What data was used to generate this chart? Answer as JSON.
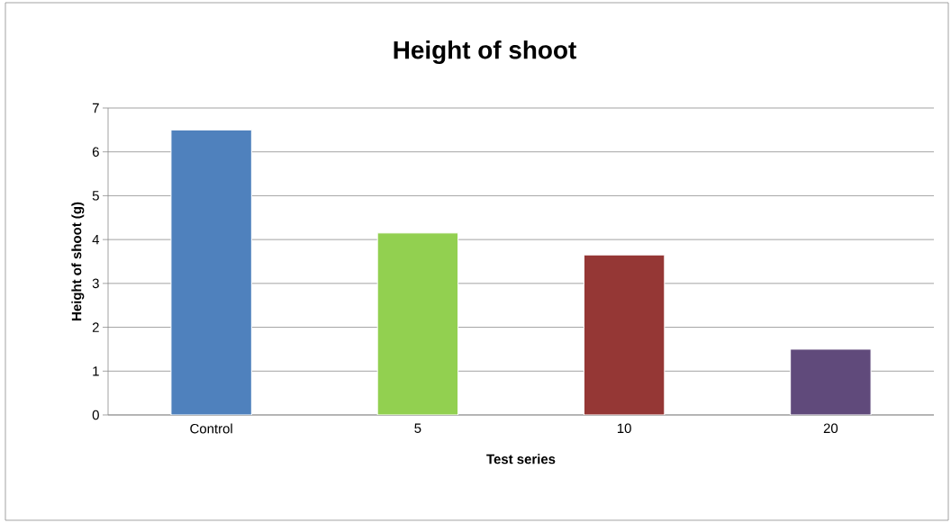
{
  "chart_data": {
    "type": "bar",
    "title": "Height of shoot",
    "xlabel": "Test series",
    "ylabel": "Height of shoot (g)",
    "categories": [
      "Control",
      "5",
      "10",
      "20"
    ],
    "values": [
      6.5,
      4.15,
      3.65,
      1.5
    ],
    "colors": [
      "#4f81bd",
      "#92d050",
      "#953735",
      "#604a7b"
    ],
    "ylim": [
      0,
      7
    ],
    "yticks": [
      0,
      1,
      2,
      3,
      4,
      5,
      6,
      7
    ],
    "grid": "y"
  }
}
